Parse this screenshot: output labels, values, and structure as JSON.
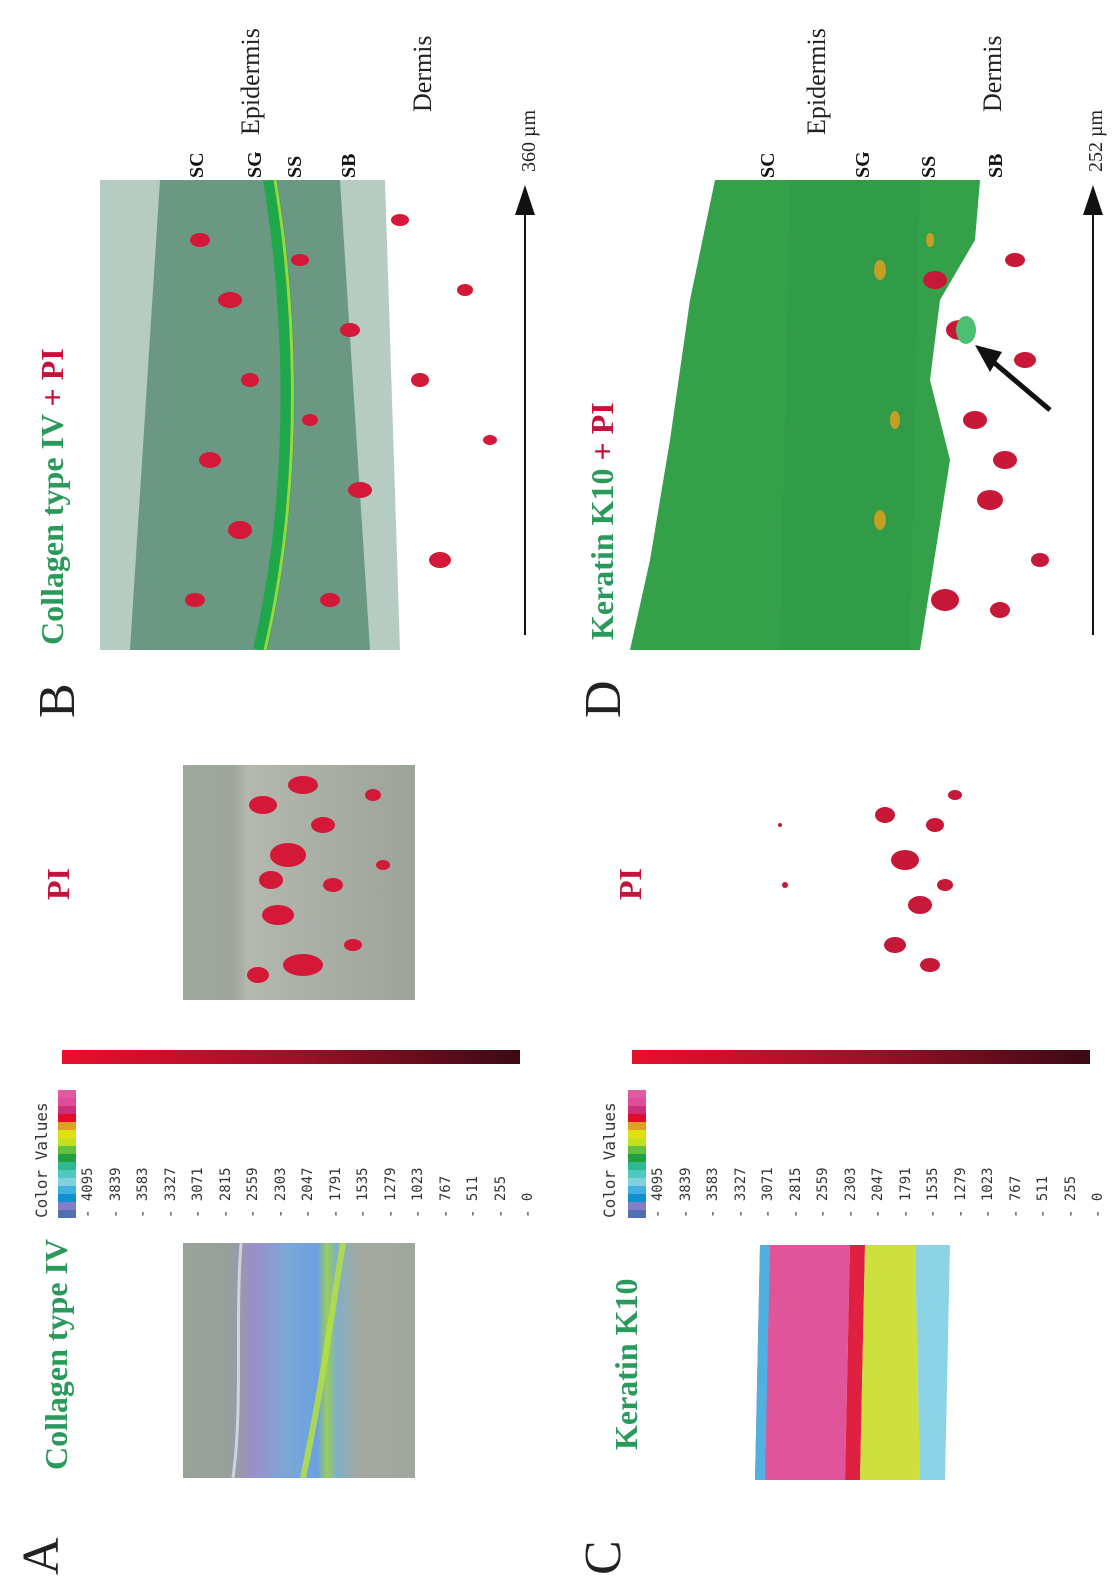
{
  "panels": {
    "A": {
      "letter": "A",
      "title": "Collagen type IV"
    },
    "B": {
      "letter": "B",
      "title_green": "Collagen type IV",
      "title_plus": " + ",
      "title_red": "PI",
      "scale": "360 µm"
    },
    "C": {
      "letter": "C",
      "title": "Keratin K10"
    },
    "D": {
      "letter": "D",
      "title_green": "Keratin K10",
      "title_plus": " + ",
      "title_red": "PI",
      "scale": "252 µm"
    }
  },
  "pi_label_top": "PI",
  "pi_label_bottom": "PI",
  "layers": [
    "SC",
    "SG",
    "SS",
    "SB"
  ],
  "regions": {
    "epidermis": "Epidermis",
    "dermis": "Dermis"
  },
  "colorbar": {
    "heading": "Color Values",
    "ticks": [
      "4095",
      "3839",
      "3583",
      "3327",
      "3071",
      "2815",
      "2559",
      "2303",
      "2047",
      "1791",
      "1535",
      "1279",
      "1023",
      "767",
      "511",
      "255",
      "0"
    ],
    "swatches": [
      "#e05aa0",
      "#e04c9a",
      "#cc2f78",
      "#e00c2c",
      "#e0a020",
      "#e0e010",
      "#c0e020",
      "#60c040",
      "#20a040",
      "#30b890",
      "#50c8c0",
      "#80d0e0",
      "#40b0e0",
      "#1090d0",
      "#8080c8",
      "#5070b0"
    ],
    "red_gradient": [
      "#e8102c",
      "#3a0a14"
    ]
  },
  "colors": {
    "green_title": "#2a9a5c",
    "red_title": "#c4123a"
  }
}
